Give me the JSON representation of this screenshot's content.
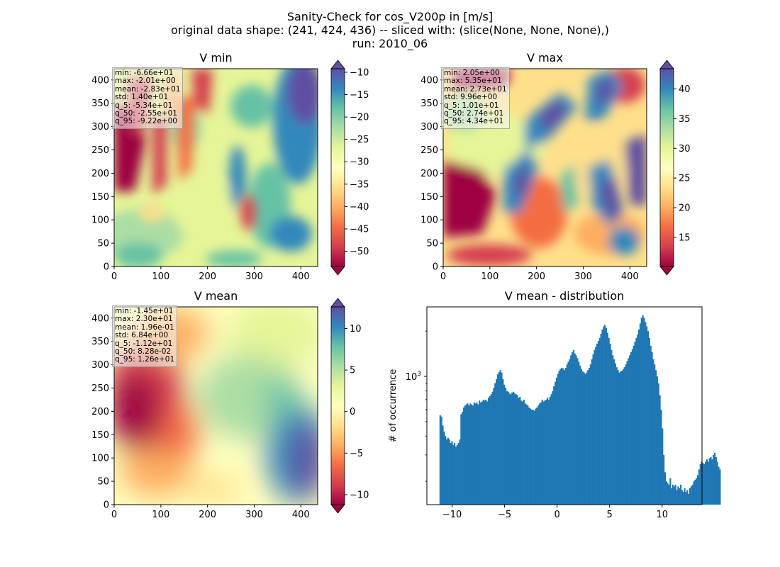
{
  "figure": {
    "title_lines": [
      "Sanity-Check for cos_V200p in [m/s]",
      "original data shape: (241, 424, 436) -- sliced with: (slice(None, None, None),)",
      "run: 2010_06"
    ]
  },
  "panels": {
    "vmin": {
      "title": "V min",
      "stats": [
        "min: -6.66e+01",
        "max: -2.01e+00",
        "mean: -2.83e+01",
        "std: 1.40e+01",
        "q_5: -5.34e+01",
        "q_50: -2.55e+01",
        "q_95: -9.22e+00"
      ]
    },
    "vmax": {
      "title": "V max",
      "stats": [
        "min: 2.05e+00",
        "max: 5.35e+01",
        "mean: 2.73e+01",
        "std: 9.96e+00",
        "q_5: 1.01e+01",
        "q_50: 2.74e+01",
        "q_95: 4.34e+01"
      ]
    },
    "vmean": {
      "title": "V mean",
      "stats": [
        "min: -1.45e+01",
        "max: 2.30e+01",
        "mean: 1.96e-01",
        "std: 6.84e+00",
        "q_5: -1.12e+01",
        "q_50: 8.28e-02",
        "q_95: 1.26e+01"
      ]
    },
    "hist": {
      "title": "V mean - distribution",
      "ylabel": "# of occurrence"
    }
  },
  "chart_data": [
    {
      "type": "heatmap",
      "title": "V min",
      "xlim": [
        0,
        436
      ],
      "ylim": [
        0,
        424
      ],
      "xticks": [
        0,
        100,
        200,
        300,
        400
      ],
      "yticks": [
        0,
        50,
        100,
        150,
        200,
        250,
        300,
        350,
        400
      ],
      "colorbar": {
        "vmin": -53.4,
        "vmax": -9.22,
        "ticks": [
          -50,
          -45,
          -40,
          -35,
          -30,
          -25,
          -20,
          -15,
          -10
        ],
        "extend": "both",
        "cmap": "Spectral"
      }
    },
    {
      "type": "heatmap",
      "title": "V max",
      "xlim": [
        0,
        436
      ],
      "ylim": [
        0,
        424
      ],
      "xticks": [
        0,
        100,
        200,
        300,
        400
      ],
      "yticks": [
        0,
        50,
        100,
        150,
        200,
        250,
        300,
        350,
        400
      ],
      "colorbar": {
        "vmin": 10.1,
        "vmax": 43.4,
        "ticks": [
          15,
          20,
          25,
          30,
          35,
          40
        ],
        "extend": "both",
        "cmap": "Spectral"
      }
    },
    {
      "type": "heatmap",
      "title": "V mean",
      "xlim": [
        0,
        436
      ],
      "ylim": [
        0,
        424
      ],
      "xticks": [
        0,
        100,
        200,
        300,
        400
      ],
      "yticks": [
        0,
        50,
        100,
        150,
        200,
        250,
        300,
        350,
        400
      ],
      "colorbar": {
        "vmin": -11.2,
        "vmax": 12.6,
        "ticks": [
          -10,
          -5,
          0,
          5,
          10
        ],
        "extend": "both",
        "cmap": "Spectral"
      }
    },
    {
      "type": "bar",
      "title": "V mean - distribution",
      "ylabel": "# of occurrence",
      "yscale": "log",
      "xlim": [
        -12.4,
        13.8
      ],
      "ylim": [
        140,
        2900
      ],
      "xticks": [
        -10,
        -5,
        0,
        5,
        10
      ],
      "yticks_major": [
        1000
      ],
      "ytick_labels": [
        "10^3"
      ],
      "bins": {
        "start": -11.2,
        "width": 0.1245
      },
      "counts": [
        550,
        540,
        470,
        430,
        400,
        380,
        390,
        380,
        360,
        370,
        350,
        360,
        340,
        350,
        360,
        380,
        560,
        580,
        620,
        640,
        650,
        660,
        640,
        660,
        650,
        640,
        670,
        660,
        670,
        650,
        690,
        670,
        680,
        700,
        690,
        700,
        680,
        720,
        740,
        760,
        790,
        840,
        900,
        960,
        1030,
        1070,
        1100,
        1060,
        960,
        880,
        840,
        800,
        790,
        770,
        760,
        780,
        790,
        770,
        760,
        750,
        720,
        730,
        690,
        680,
        700,
        660,
        650,
        640,
        620,
        610,
        600,
        600,
        590,
        610,
        620,
        640,
        660,
        670,
        700,
        680,
        690,
        700,
        720,
        700,
        730,
        760,
        800,
        860,
        920,
        980,
        1040,
        1090,
        1120,
        1140,
        1130,
        1100,
        1140,
        1200,
        1250,
        1300,
        1380,
        1450,
        1500,
        1420,
        1380,
        1320,
        1250,
        1180,
        1120,
        1080,
        1060,
        1040,
        1060,
        1100,
        1140,
        1200,
        1300,
        1400,
        1500,
        1570,
        1650,
        1720,
        1800,
        1920,
        2050,
        2150,
        2200,
        2100,
        1950,
        1800,
        1650,
        1500,
        1380,
        1300,
        1220,
        1150,
        1100,
        1060,
        1080,
        1090,
        1120,
        1150,
        1200,
        1260,
        1320,
        1380,
        1450,
        1520,
        1600,
        1700,
        1800,
        1900,
        2050,
        2250,
        2450,
        2550,
        2450,
        2300,
        2150,
        2000,
        1800,
        1600,
        1450,
        1300,
        1200,
        1100,
        1000,
        900,
        750,
        600,
        450,
        300,
        230,
        200,
        195,
        190,
        210,
        180,
        190,
        185,
        190,
        175,
        185,
        180,
        190,
        175,
        170,
        180,
        170,
        175,
        165,
        180,
        185,
        190,
        200,
        205,
        210,
        220,
        240,
        260,
        270,
        265,
        260,
        270,
        280,
        270,
        285,
        290,
        280,
        300,
        310,
        290,
        270,
        250,
        240
      ]
    }
  ]
}
